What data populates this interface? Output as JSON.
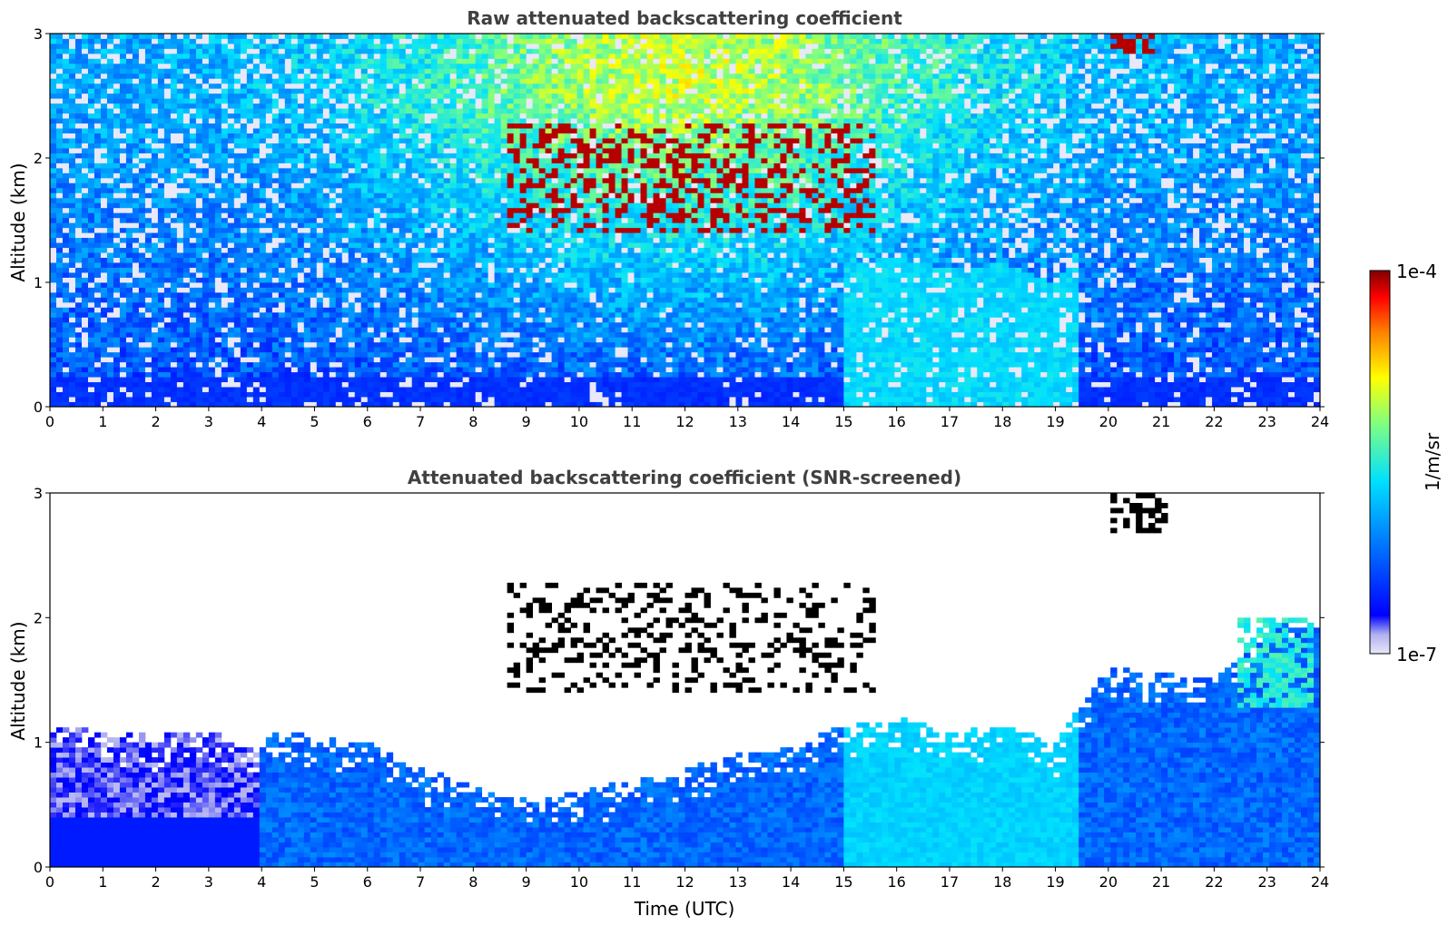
{
  "chart_data": [
    {
      "type": "heatmap",
      "title": "Raw attenuated backscattering coefficient",
      "xlabel": "",
      "ylabel": "Altitude (km)",
      "xlim": [
        0,
        24
      ],
      "ylim": [
        0,
        3
      ],
      "x_ticks": [
        "0",
        "1",
        "2",
        "3",
        "4",
        "5",
        "6",
        "7",
        "8",
        "9",
        "10",
        "11",
        "12",
        "13",
        "14",
        "15",
        "16",
        "17",
        "18",
        "19",
        "20",
        "21",
        "22",
        "23",
        "24"
      ],
      "y_ticks": [
        "0",
        "1",
        "2",
        "3"
      ],
      "features": [
        {
          "feature": "dense surface aerosol layer",
          "time_range": [
            0,
            24
          ],
          "altitude_range": [
            0,
            0.35
          ]
        },
        {
          "feature": "boundary layer",
          "time_range": [
            4.3,
            19.5
          ],
          "altitude_range": [
            0,
            0.9
          ]
        },
        {
          "feature": "scattered clouds",
          "time_range": [
            8.7,
            15.6
          ],
          "altitude_range": [
            1.4,
            2.3
          ]
        },
        {
          "feature": "high cloud",
          "time_range": [
            20.0,
            20.9
          ],
          "altitude_range": [
            2.8,
            3.0
          ]
        }
      ]
    },
    {
      "type": "heatmap",
      "title": "Attenuated backscattering coefficient (SNR-screened)",
      "xlabel": "Time (UTC)",
      "ylabel": "Altitude (km)",
      "xlim": [
        0,
        24
      ],
      "ylim": [
        0,
        3
      ],
      "x_ticks": [
        "0",
        "1",
        "2",
        "3",
        "4",
        "5",
        "6",
        "7",
        "8",
        "9",
        "10",
        "11",
        "12",
        "13",
        "14",
        "15",
        "16",
        "17",
        "18",
        "19",
        "20",
        "21",
        "22",
        "23",
        "24"
      ],
      "y_ticks": [
        "0",
        "1",
        "2",
        "3"
      ],
      "boundary_layer_top_km": [
        [
          0,
          1.15
        ],
        [
          1,
          1.1
        ],
        [
          2,
          1.05
        ],
        [
          3,
          1.1
        ],
        [
          3.8,
          0.95
        ],
        [
          4.3,
          1.1
        ],
        [
          5,
          1.05
        ],
        [
          6,
          1.0
        ],
        [
          7,
          0.8
        ],
        [
          8,
          0.65
        ],
        [
          9,
          0.55
        ],
        [
          10,
          0.6
        ],
        [
          11,
          0.7
        ],
        [
          12,
          0.8
        ],
        [
          13,
          0.9
        ],
        [
          14,
          0.95
        ],
        [
          15,
          1.15
        ],
        [
          16,
          1.2
        ],
        [
          17,
          1.1
        ],
        [
          18,
          1.15
        ],
        [
          19,
          1.0
        ],
        [
          20,
          1.6
        ],
        [
          21,
          1.55
        ],
        [
          22,
          1.5
        ],
        [
          23,
          1.9
        ],
        [
          23.8,
          2.0
        ]
      ],
      "features": [
        {
          "feature": "screened clouds",
          "time_range": [
            8.7,
            15.6
          ],
          "altitude_range": [
            1.4,
            2.3
          ]
        },
        {
          "feature": "high cloud",
          "time_range": [
            20.0,
            21.1
          ],
          "altitude_range": [
            2.7,
            3.0
          ]
        },
        {
          "feature": "aerosol plume",
          "time_range": [
            22.5,
            23.9
          ],
          "altitude_range": [
            1.3,
            2.0
          ]
        }
      ]
    }
  ],
  "colorbar": {
    "label": "1/m/sr",
    "max_label": "1e-4",
    "min_label": "1e-7",
    "scale": "log",
    "colormap": "jet",
    "colors": [
      "#e8e8f8",
      "#b0b0f0",
      "#0000ff",
      "#0080ff",
      "#00e0ff",
      "#80ff80",
      "#ffff00",
      "#ff8000",
      "#ff0000",
      "#800000"
    ]
  }
}
